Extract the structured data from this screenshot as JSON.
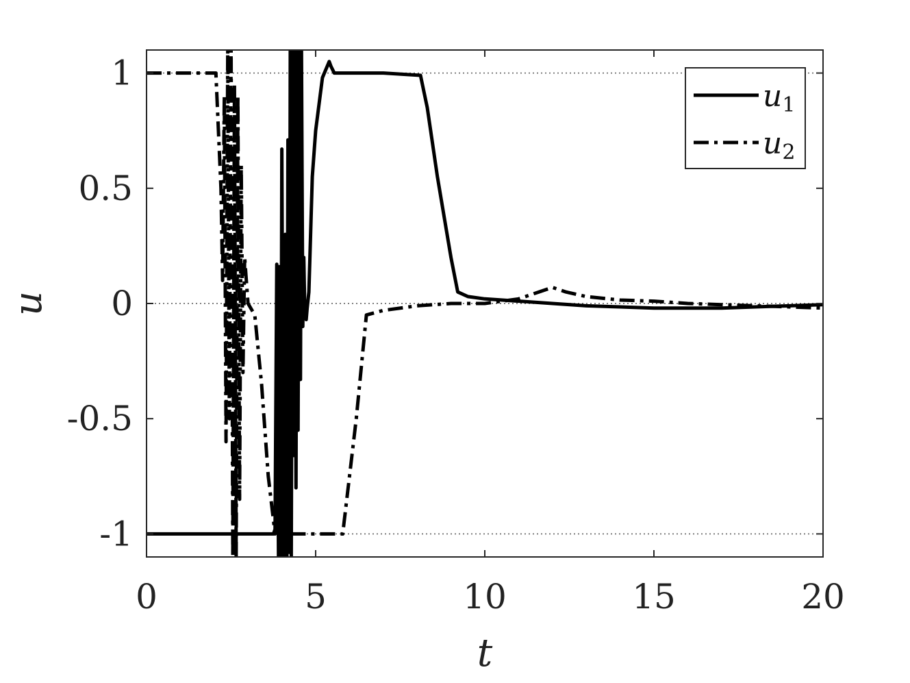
{
  "chart_data": {
    "type": "line",
    "title": "",
    "xlabel": "t",
    "ylabel": "u",
    "xlim": [
      0,
      20
    ],
    "ylim": [
      -1.1,
      1.1
    ],
    "xticks": [
      0,
      5,
      10,
      15,
      20
    ],
    "xtick_labels": [
      "0",
      "5",
      "10",
      "15",
      "20"
    ],
    "yticks": [
      -1,
      -0.5,
      0,
      0.5,
      1
    ],
    "ytick_labels": [
      "-1",
      "-0.5",
      "0",
      "0.5",
      "1"
    ],
    "reference_lines": [
      1,
      0,
      -1
    ],
    "grid": false,
    "legend_position": "top-right",
    "series": [
      {
        "name": "u",
        "subscript": "1",
        "style": "solid",
        "color": "#000000",
        "x": [
          0,
          1.0,
          2.0,
          3.0,
          3.7,
          3.75,
          3.8,
          3.85,
          3.9,
          3.93,
          3.97,
          4.0,
          4.05,
          4.1,
          4.15,
          4.18,
          4.22,
          4.25,
          4.28,
          4.32,
          4.35,
          4.38,
          4.42,
          4.45,
          4.48,
          4.52,
          4.55,
          4.58,
          4.62,
          4.65,
          4.68,
          4.72,
          4.75,
          4.8,
          4.85,
          4.9,
          5.0,
          5.2,
          5.4,
          5.45,
          5.55,
          6.0,
          7.0,
          8.1,
          8.3,
          8.6,
          9.0,
          9.2,
          9.5,
          10.0,
          11.0,
          12.0,
          13.0,
          14.0,
          15.0,
          16.0,
          17.0,
          18.0,
          19.0,
          20.0
        ],
        "y": [
          -1,
          -1,
          -1,
          -1,
          -1,
          -1.0,
          -0.98,
          0.17,
          -1.1,
          0.16,
          -1.1,
          0.67,
          -1.1,
          0.3,
          -1.1,
          0.71,
          -1.08,
          1.1,
          -1.1,
          1.1,
          -0.66,
          1.1,
          -0.8,
          1.1,
          -0.55,
          1.1,
          -0.33,
          1.1,
          -0.1,
          0.2,
          -0.05,
          -0.07,
          -0.02,
          0.05,
          0.3,
          0.55,
          0.75,
          0.98,
          1.05,
          1.03,
          1.0,
          1.0,
          1.0,
          0.99,
          0.85,
          0.55,
          0.2,
          0.05,
          0.03,
          0.02,
          0.01,
          0.0,
          -0.01,
          -0.015,
          -0.02,
          -0.02,
          -0.02,
          -0.015,
          -0.01,
          -0.005
        ]
      },
      {
        "name": "u",
        "subscript": "2",
        "style": "dashdot",
        "color": "#000000",
        "x": [
          0,
          1.0,
          2.05,
          2.2,
          2.25,
          2.3,
          2.35,
          2.4,
          2.45,
          2.5,
          2.55,
          2.6,
          2.65,
          2.7,
          2.75,
          2.8,
          2.85,
          2.9,
          3.0,
          3.2,
          3.4,
          3.6,
          3.8,
          3.9,
          4.0,
          4.5,
          5.0,
          5.8,
          6.2,
          6.5,
          7.0,
          8.0,
          9.0,
          10.0,
          11.0,
          11.6,
          12.0,
          12.4,
          13.0,
          14.0,
          15.0,
          16.0,
          17.0,
          18.0,
          19.0,
          20.0
        ],
        "y": [
          1,
          1,
          1,
          0.5,
          0.1,
          0.9,
          -0.6,
          1.1,
          -0.5,
          1.1,
          -1.1,
          0.95,
          -1.1,
          0.9,
          -0.85,
          0.6,
          -0.3,
          0.2,
          0.0,
          -0.05,
          -0.35,
          -0.75,
          -1.0,
          -0.9,
          -1.0,
          -1.0,
          -1.0,
          -1.0,
          -0.5,
          -0.05,
          -0.03,
          -0.01,
          0.0,
          0.0,
          0.02,
          0.05,
          0.07,
          0.05,
          0.03,
          0.015,
          0.01,
          0.0,
          -0.005,
          -0.01,
          -0.015,
          -0.02
        ]
      }
    ]
  }
}
